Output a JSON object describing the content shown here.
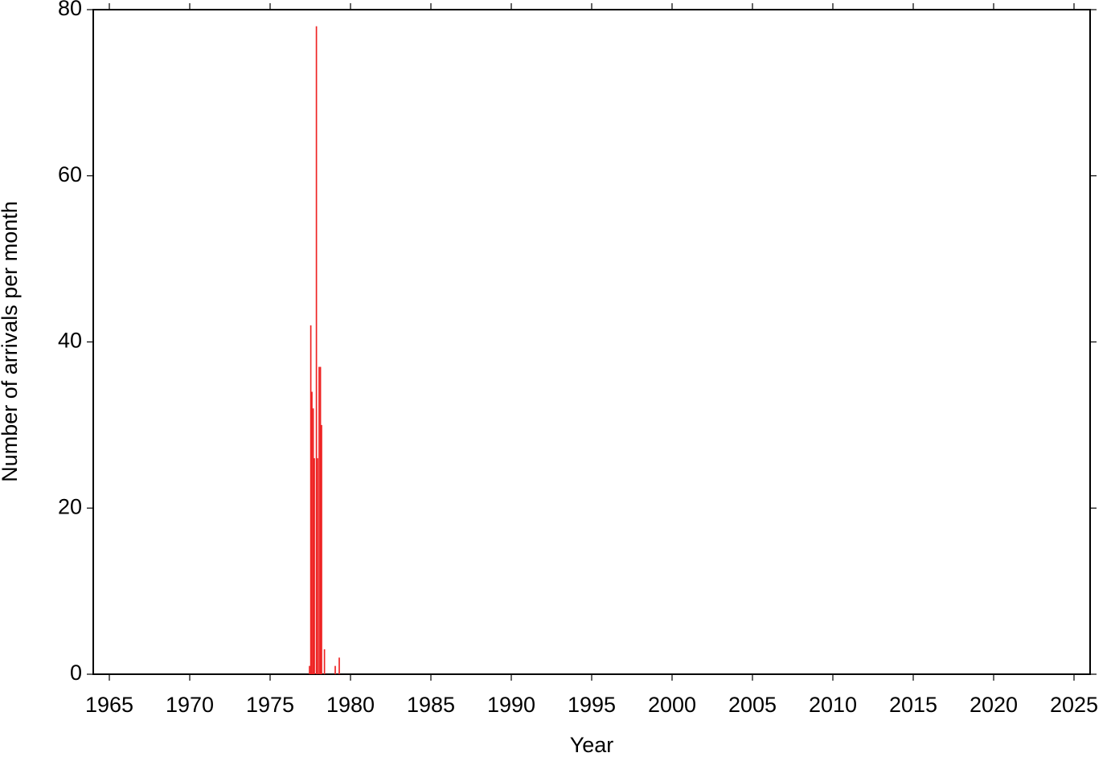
{
  "chart_data": {
    "type": "bar",
    "x_label": "Year",
    "y_label": "Number of arrivals per month",
    "x": [
      1977.45,
      1977.53,
      1977.6,
      1977.68,
      1977.75,
      1977.88,
      1977.95,
      1978.05,
      1978.13,
      1978.2,
      1978.38,
      1979.05,
      1979.3
    ],
    "values": [
      1,
      42,
      34,
      32,
      26,
      78,
      26,
      37,
      37,
      30,
      3,
      1,
      2
    ],
    "color": "#ee2222",
    "xlim": [
      1964,
      2026
    ],
    "xticks": [
      1965,
      1970,
      1975,
      1980,
      1985,
      1990,
      1995,
      2000,
      2005,
      2010,
      2015,
      2020,
      2025
    ],
    "ylim": [
      0,
      80
    ],
    "yticks": [
      0,
      20,
      40,
      60,
      80
    ],
    "grid": false
  }
}
